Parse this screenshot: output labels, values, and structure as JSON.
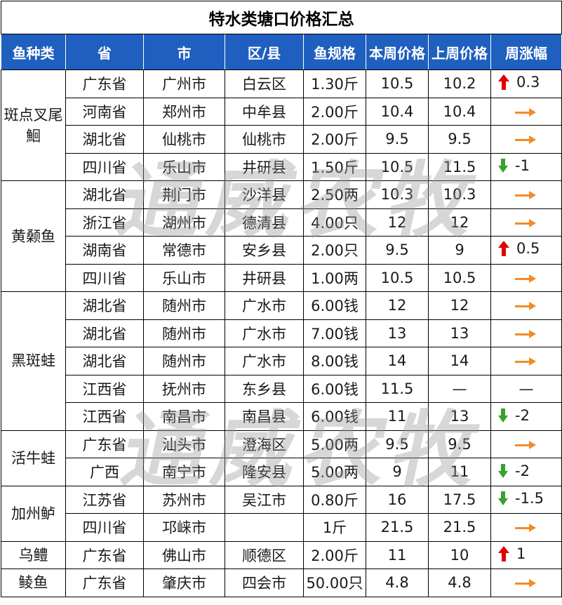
{
  "title": "特水类塘口价格汇总",
  "headers": [
    "鱼种类",
    "省",
    "市",
    "区/县",
    "鱼规格",
    "本周价格",
    "上周价格",
    "周涨幅"
  ],
  "watermark": "通威农牧",
  "colors": {
    "header_bg": "#1f5fbf",
    "last_price": "#e00000",
    "up": "#e00000",
    "down": "#3aa02e",
    "flat": "#f08c28"
  },
  "species": [
    {
      "name": "斑点叉尾鮰",
      "rows": 4
    },
    {
      "name": "黄颡鱼",
      "rows": 4
    },
    {
      "name": "黑斑蛙",
      "rows": 5
    },
    {
      "name": "活牛蛙",
      "rows": 2
    },
    {
      "name": "加州鲈",
      "rows": 2
    },
    {
      "name": "乌鳢",
      "rows": 1
    },
    {
      "name": "鲮鱼",
      "rows": 1
    }
  ],
  "rows": [
    {
      "province": "广东省",
      "city": "广州市",
      "county": "白云区",
      "spec": "1.30斤",
      "this_week": "10.5",
      "last_week": "10.2",
      "trend": "up",
      "change": "0.3"
    },
    {
      "province": "河南省",
      "city": "郑州市",
      "county": "中牟县",
      "spec": "2.00斤",
      "this_week": "10.4",
      "last_week": "10.4",
      "trend": "flat",
      "change": ""
    },
    {
      "province": "湖北省",
      "city": "仙桃市",
      "county": "仙桃市",
      "spec": "2.00斤",
      "this_week": "9.5",
      "last_week": "9.5",
      "trend": "flat",
      "change": ""
    },
    {
      "province": "四川省",
      "city": "乐山市",
      "county": "井研县",
      "spec": "1.50斤",
      "this_week": "10.5",
      "last_week": "11.5",
      "trend": "down",
      "change": "-1"
    },
    {
      "province": "湖北省",
      "city": "荆门市",
      "county": "沙洋县",
      "spec": "2.50两",
      "this_week": "10.3",
      "last_week": "10.3",
      "trend": "flat",
      "change": ""
    },
    {
      "province": "浙江省",
      "city": "湖州市",
      "county": "德清县",
      "spec": "4.00只",
      "this_week": "12",
      "last_week": "12",
      "trend": "flat",
      "change": ""
    },
    {
      "province": "湖南省",
      "city": "常德市",
      "county": "安乡县",
      "spec": "2.00只",
      "this_week": "9.5",
      "last_week": "9",
      "trend": "up",
      "change": "0.5"
    },
    {
      "province": "四川省",
      "city": "乐山市",
      "county": "井研县",
      "spec": "1.00两",
      "this_week": "10.5",
      "last_week": "10.5",
      "trend": "flat",
      "change": ""
    },
    {
      "province": "湖北省",
      "city": "随州市",
      "county": "广水市",
      "spec": "6.00钱",
      "this_week": "12",
      "last_week": "12",
      "trend": "flat",
      "change": ""
    },
    {
      "province": "湖北省",
      "city": "随州市",
      "county": "广水市",
      "spec": "7.00钱",
      "this_week": "13",
      "last_week": "13",
      "trend": "flat",
      "change": ""
    },
    {
      "province": "湖北省",
      "city": "随州市",
      "county": "广水市",
      "spec": "8.00钱",
      "this_week": "14",
      "last_week": "14",
      "trend": "flat",
      "change": ""
    },
    {
      "province": "江西省",
      "city": "抚州市",
      "county": "东乡县",
      "spec": "6.00钱",
      "this_week": "11.5",
      "last_week": "—",
      "trend": "none",
      "change": "—"
    },
    {
      "province": "江西省",
      "city": "南昌市",
      "county": "南昌县",
      "spec": "6.00钱",
      "this_week": "11",
      "last_week": "13",
      "trend": "down",
      "change": "-2"
    },
    {
      "province": "广东省",
      "city": "汕头市",
      "county": "澄海区",
      "spec": "5.00两",
      "this_week": "9.5",
      "last_week": "9.5",
      "trend": "flat",
      "change": ""
    },
    {
      "province": "广西",
      "city": "南宁市",
      "county": "隆安县",
      "spec": "5.00两",
      "this_week": "9",
      "last_week": "11",
      "trend": "down",
      "change": "-2"
    },
    {
      "province": "江苏省",
      "city": "苏州市",
      "county": "吴江市",
      "spec": "0.80斤",
      "this_week": "16",
      "last_week": "17.5",
      "trend": "down",
      "change": "-1.5"
    },
    {
      "province": "四川省",
      "city": "邛崃市",
      "county": "",
      "spec": "1斤",
      "this_week": "21.5",
      "last_week": "21.5",
      "trend": "flat",
      "change": ""
    },
    {
      "province": "广东省",
      "city": "佛山市",
      "county": "顺德区",
      "spec": "2.00斤",
      "this_week": "11",
      "last_week": "10",
      "trend": "up",
      "change": "1"
    },
    {
      "province": "广东省",
      "city": "肇庆市",
      "county": "四会市",
      "spec": "50.00只",
      "this_week": "4.8",
      "last_week": "4.8",
      "trend": "flat",
      "change": ""
    }
  ]
}
